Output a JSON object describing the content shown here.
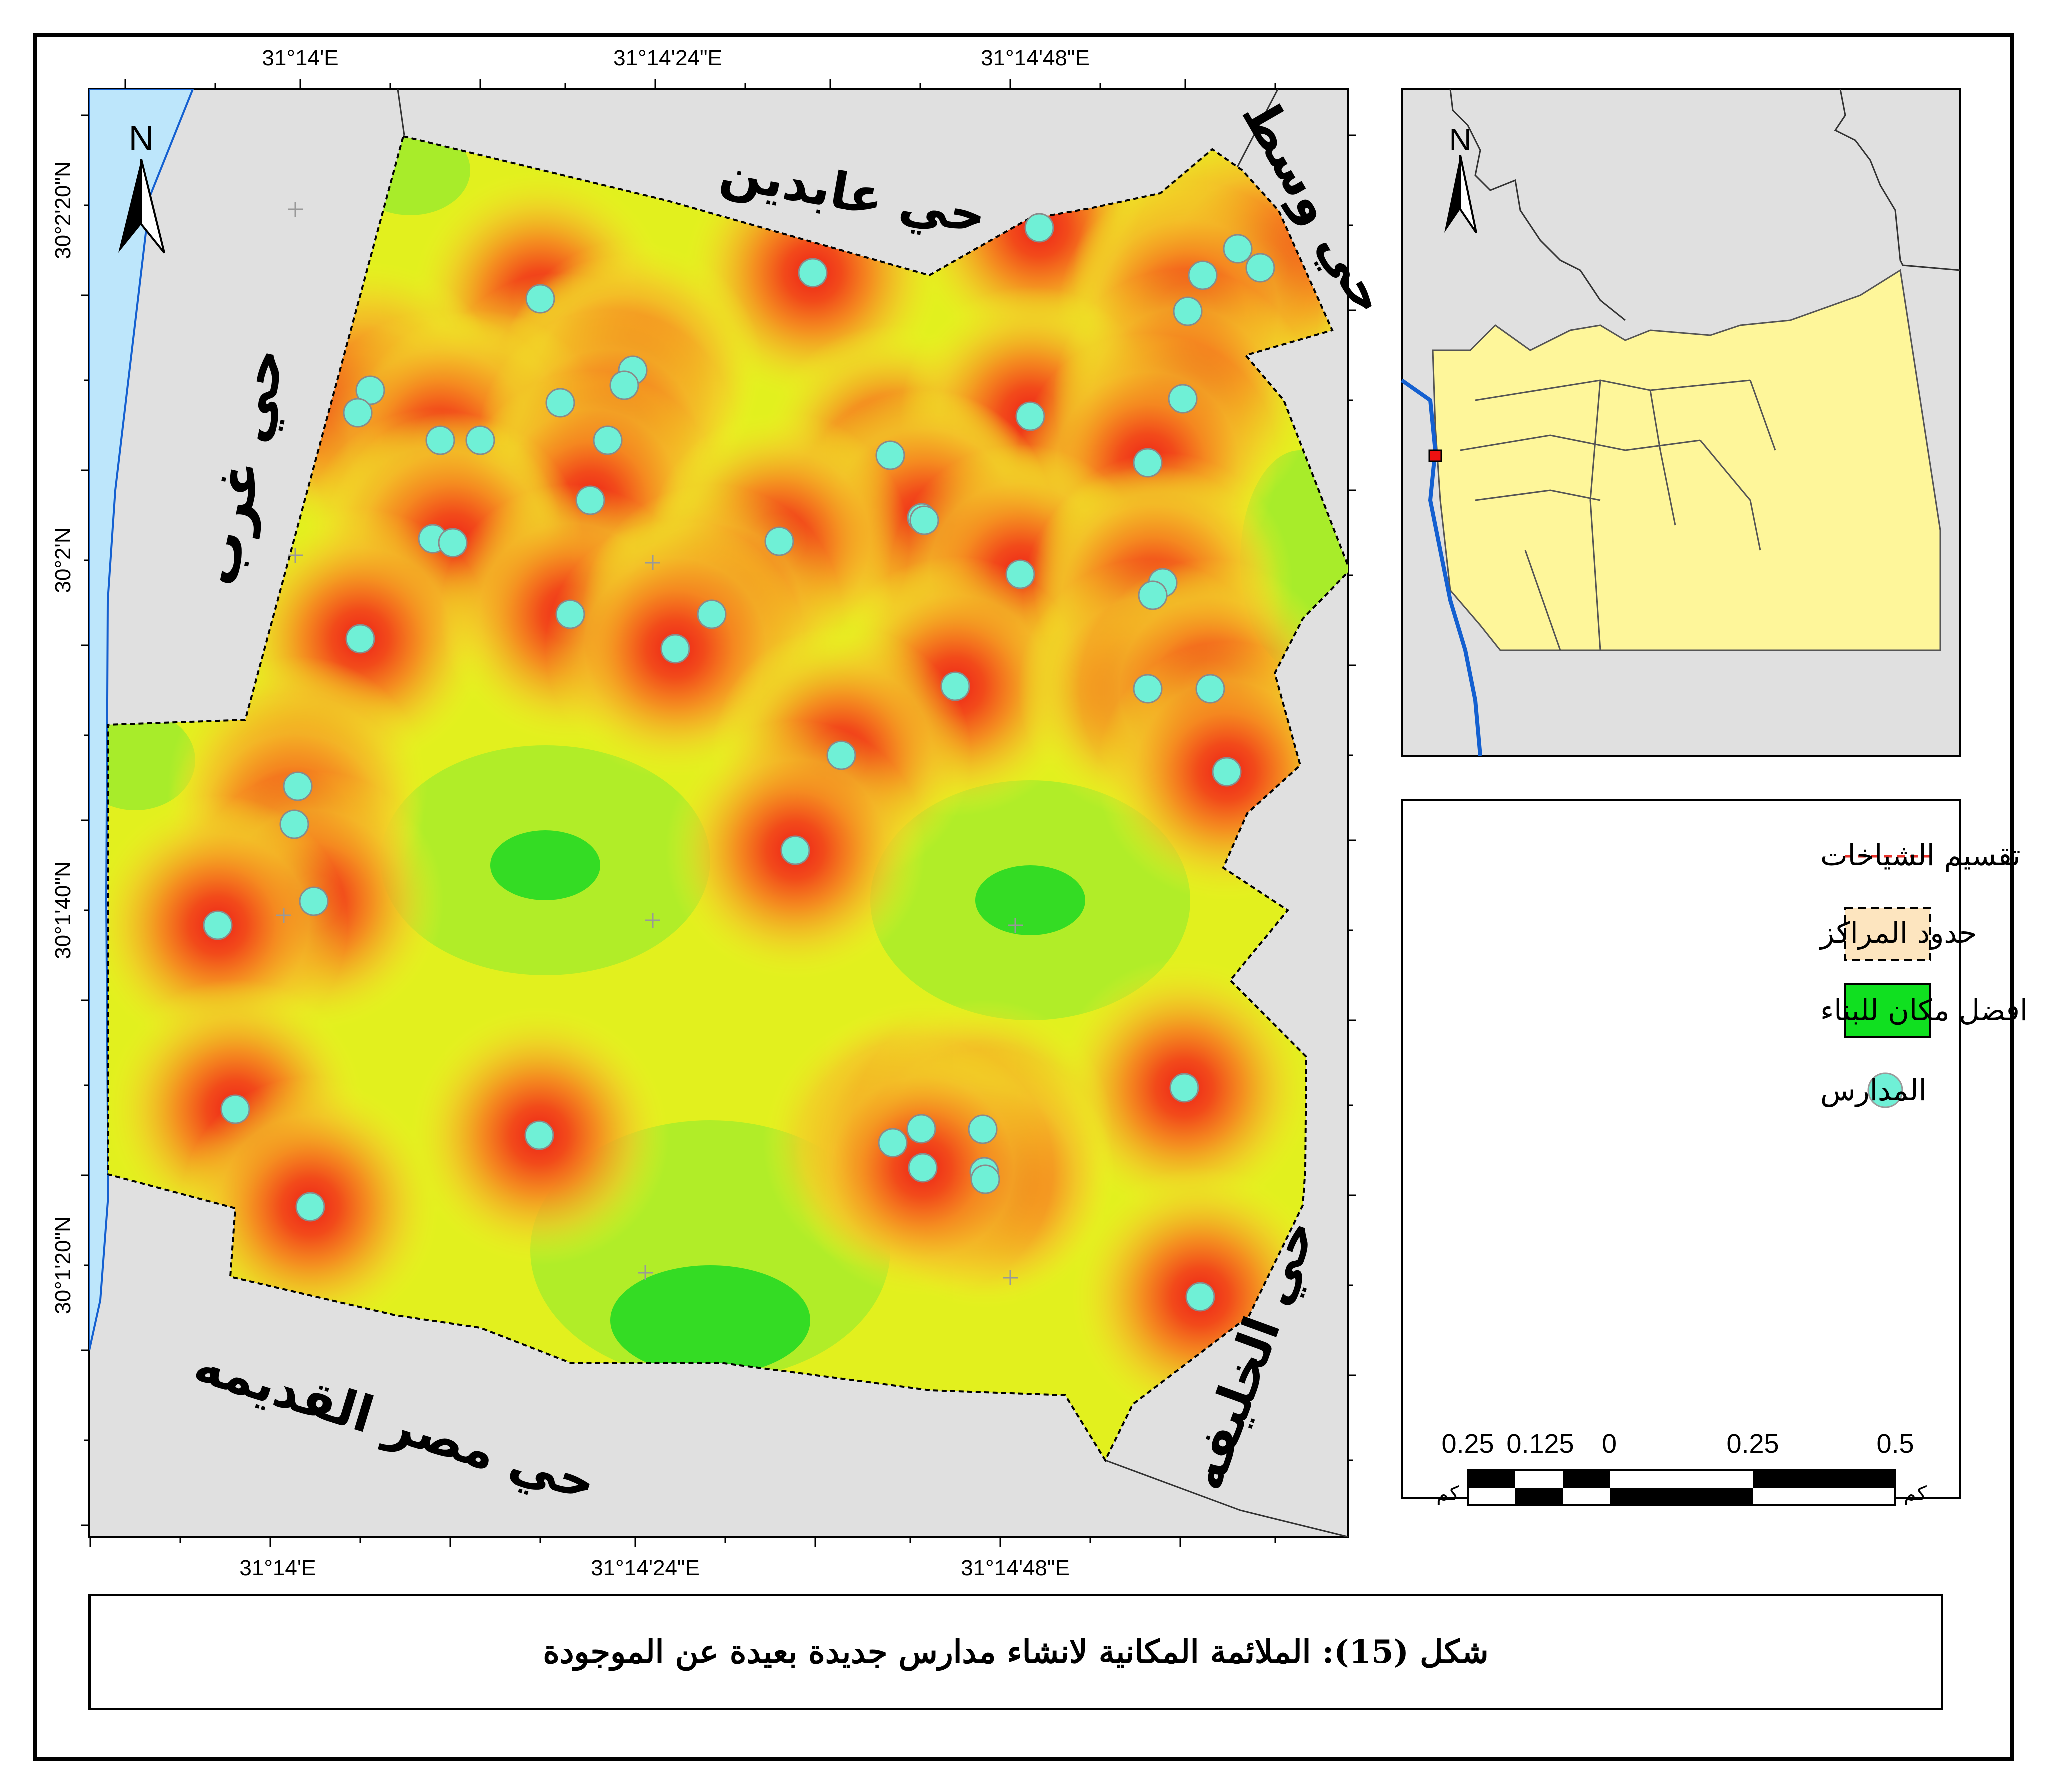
{
  "caption": "شكل (15): الملائمة المكانية لانشاء مدارس جديدة بعيدة عن الموجودة",
  "top_ticks": [
    "31°14'E",
    "31°14'24\"E",
    "31°14'48\"E"
  ],
  "bottom_ticks": [
    "31°14'E",
    "31°14'24\"E",
    "31°14'48\"E"
  ],
  "left_ticks": [
    "30°2'20\"N",
    "30°2'N",
    "30°1'40\"N",
    "30°1'20\"N"
  ],
  "districts": {
    "abdeen": "حي عابدين",
    "wasat": "حي وسط",
    "gharb": "حي غرب",
    "masr_qadima": "حي مصر القديمه",
    "khalifa": "حي الخليفه"
  },
  "north_label": "N",
  "inset_north_label": "N",
  "legend": {
    "items": [
      {
        "label": "تقسيم الشياخات",
        "symbol": "red-dashed-line",
        "color": "#e8312a"
      },
      {
        "label": "حدود المراكز",
        "symbol": "dashed-box",
        "color": "#fde5bf"
      },
      {
        "label": "افضل مكان للبناء",
        "symbol": "green-box",
        "color": "#10e020"
      },
      {
        "label": "المدارس",
        "symbol": "circle",
        "color": "#6ff0d6"
      }
    ]
  },
  "scale_bar": {
    "labels": [
      "0.25",
      "0.125",
      "0",
      "0.25",
      "0.5"
    ],
    "unit_left": "كم",
    "unit_right": "كم"
  },
  "colors": {
    "background_area": "#e0e0e0",
    "river": "#bde6fb",
    "suitability_high": "#22e020",
    "suitability_mid": "#eef224",
    "suitability_low": "#ee2418",
    "school": "#6ff0d6",
    "inset_study_area": "#fef69a"
  }
}
